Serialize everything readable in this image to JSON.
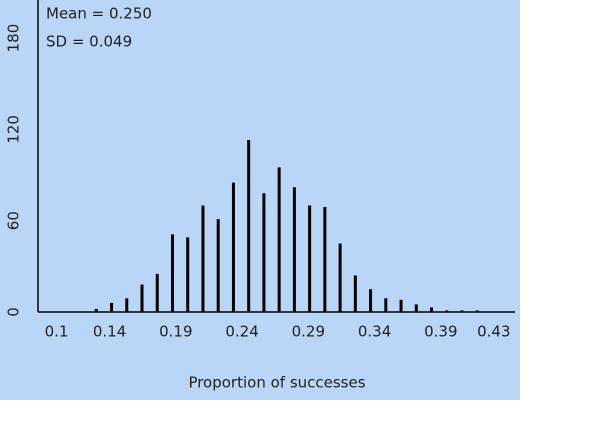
{
  "chart_data": {
    "type": "stick",
    "xlabel": "Proportion of successes",
    "annotations": [
      "Mean = 0.250",
      "SD = 0.049"
    ],
    "x": [
      0.13,
      0.1415,
      0.153,
      0.1645,
      0.176,
      0.1875,
      0.199,
      0.2105,
      0.222,
      0.2335,
      0.245,
      0.2565,
      0.268,
      0.2795,
      0.291,
      0.3025,
      0.314,
      0.3255,
      0.337,
      0.3485,
      0.36,
      0.3715,
      0.383,
      0.3945,
      0.406,
      0.4175
    ],
    "values": [
      2,
      6,
      9,
      18,
      25,
      51,
      49,
      70,
      61,
      85,
      113,
      78,
      95,
      82,
      70,
      69,
      45,
      24,
      15,
      9,
      8,
      5,
      3,
      1,
      1,
      1
    ],
    "color": "#000000",
    "xlim": [
      0.086,
      0.446
    ],
    "xticks": [
      0.1,
      0.14,
      0.19,
      0.24,
      0.29,
      0.34,
      0.39,
      0.43
    ],
    "ylim": [
      0,
      205
    ],
    "yticks": [
      0,
      60,
      120,
      180
    ],
    "background": "#b9d6f7"
  }
}
